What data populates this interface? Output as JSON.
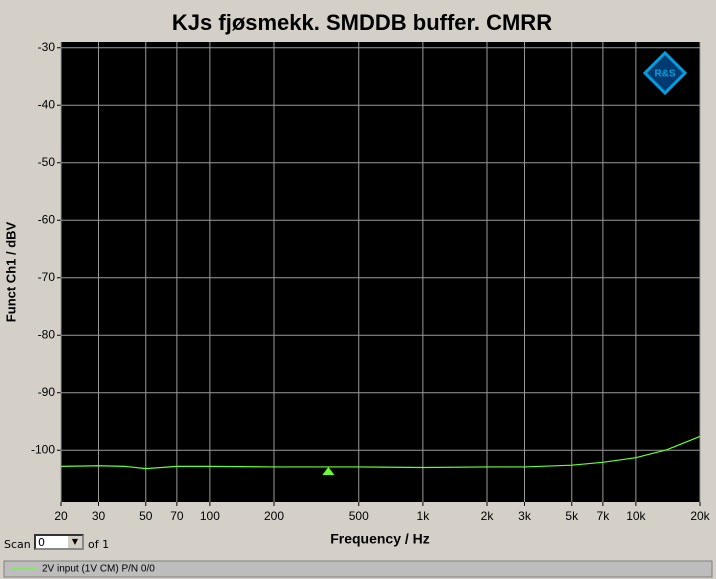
{
  "chart_data": {
    "type": "line",
    "title": "KJs fjøsmekk. SMDDB buffer. CMRR",
    "x_label": "Frequency / Hz",
    "y_label": "Funct Ch1 / dBV",
    "xscale": "log",
    "x": [
      20,
      30,
      40,
      50,
      70,
      100,
      200,
      500,
      1000,
      2000,
      3000,
      5000,
      7000,
      10000,
      14000,
      20000
    ],
    "series": [
      {
        "name": "2V input (1V CM) P/N 0/0",
        "color": "#66ff33",
        "values": [
          -102.8,
          -102.7,
          -102.8,
          -103.2,
          -102.8,
          -102.8,
          -102.9,
          -102.9,
          -103,
          -102.9,
          -102.9,
          -102.6,
          -102.1,
          -101.3,
          -99.9,
          -97.6
        ]
      }
    ],
    "marker": {
      "x": 360,
      "y": -103.6
    },
    "xlim": [
      20,
      20000
    ],
    "ylim": [
      -109,
      -29
    ],
    "xticks": [
      20,
      30,
      50,
      70,
      100,
      200,
      500,
      {
        "value": 1000,
        "label": "1k"
      },
      {
        "value": 2000,
        "label": "2k"
      },
      {
        "value": 3000,
        "label": "3k"
      },
      {
        "value": 5000,
        "label": "5k"
      },
      {
        "value": 7000,
        "label": "7k"
      },
      {
        "value": 10000,
        "label": "10k"
      },
      {
        "value": 20000,
        "label": "20k"
      }
    ],
    "yticks": [
      -30,
      -40,
      -50,
      -60,
      -70,
      -80,
      -90,
      -100
    ],
    "grid": true,
    "logo": "R&S"
  },
  "controls": {
    "scan_label": "Scan",
    "scan_value": "0",
    "of_label": "of 1"
  }
}
